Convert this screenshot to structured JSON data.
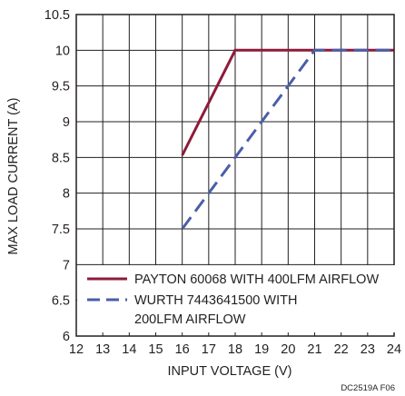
{
  "chart_data": {
    "type": "line",
    "xlabel": "INPUT VOLTAGE (V)",
    "ylabel": "MAX LOAD CURRENT (A)",
    "xlim": [
      12,
      24
    ],
    "ylim": [
      6,
      10.5
    ],
    "x_ticks": [
      "12",
      "13",
      "14",
      "15",
      "16",
      "17",
      "18",
      "19",
      "20",
      "21",
      "22",
      "23",
      "24"
    ],
    "y_ticks": [
      "6",
      "6.5",
      "7",
      "7.5",
      "8",
      "8.5",
      "9",
      "9.5",
      "10",
      "10.5"
    ],
    "grid": true,
    "legend_placement": "bottom-right",
    "series": [
      {
        "name": "PAYTON 60068 WITH 400LFM AIRFLOW",
        "color": "#8e1b3a",
        "style": "solid",
        "x": [
          16,
          18,
          24
        ],
        "y": [
          8.53,
          10,
          10
        ]
      },
      {
        "name_line1": "WURTH 7443641500 WITH",
        "name_line2": "200LFM AIRFLOW",
        "color": "#4a5ea8",
        "style": "dashed",
        "x": [
          16,
          21,
          24
        ],
        "y": [
          7.5,
          10,
          10
        ]
      }
    ]
  },
  "footer_code": "DC2519A F06"
}
